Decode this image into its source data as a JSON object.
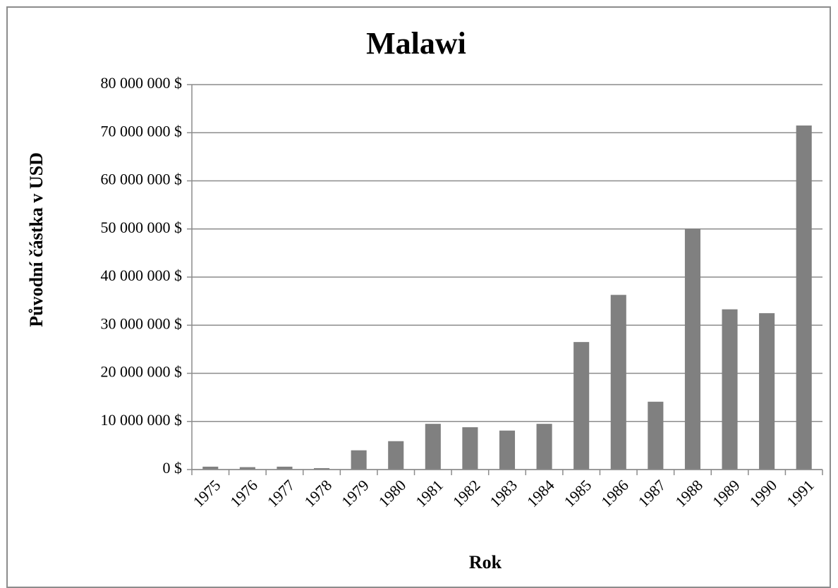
{
  "chart_data": {
    "type": "bar",
    "title": "Malawi",
    "x_label": "Rok",
    "y_label": "Původní částka v USD",
    "categories": [
      "1975",
      "1976",
      "1977",
      "1978",
      "1979",
      "1980",
      "1981",
      "1982",
      "1983",
      "1984",
      "1985",
      "1986",
      "1987",
      "1988",
      "1989",
      "1990",
      "1991"
    ],
    "values": [
      600000,
      500000,
      600000,
      300000,
      4000000,
      5900000,
      9500000,
      8800000,
      8100000,
      9500000,
      26500000,
      36300000,
      14100000,
      50000000,
      33300000,
      32500000,
      71500000
    ],
    "color": "#808080",
    "ylim": [
      0,
      80000000
    ],
    "yticks": [
      {
        "value": 0,
        "label": "0 $"
      },
      {
        "value": 10000000,
        "label": "10 000 000 $"
      },
      {
        "value": 20000000,
        "label": "20 000 000 $"
      },
      {
        "value": 30000000,
        "label": "30 000 000 $"
      },
      {
        "value": 40000000,
        "label": "40 000 000 $"
      },
      {
        "value": 50000000,
        "label": "50 000 000 $"
      },
      {
        "value": 60000000,
        "label": "60 000 000 $"
      },
      {
        "value": 70000000,
        "label": "70 000 000 $"
      },
      {
        "value": 80000000,
        "label": "80 000 000 $"
      }
    ],
    "grid": true
  }
}
